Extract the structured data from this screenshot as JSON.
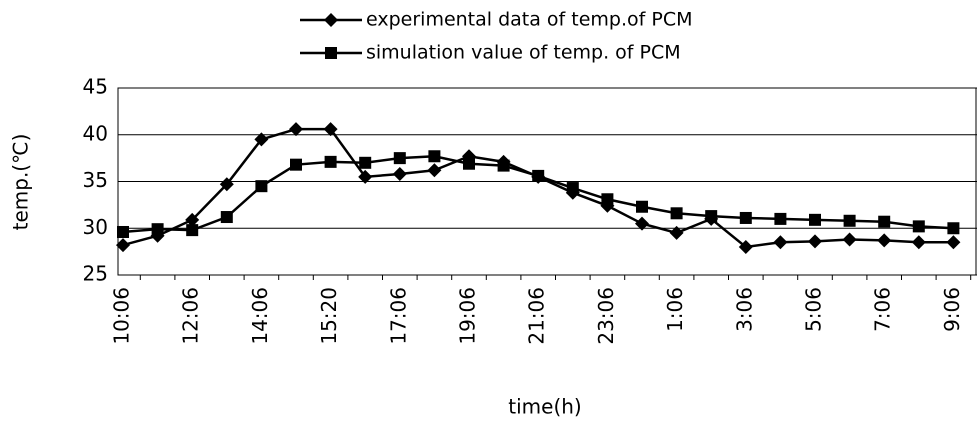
{
  "chart_data": {
    "type": "line",
    "x_label": "time(h)",
    "y_label": "temp.(℃)",
    "categories": [
      "10:06",
      null,
      "12:06",
      null,
      "14:06",
      null,
      "15:20",
      null,
      "17:06",
      null,
      "19:06",
      null,
      "21:06",
      null,
      "23:06",
      null,
      "1:06",
      null,
      "3:06",
      null,
      "5:06",
      null,
      "7:06",
      null,
      "9:06"
    ],
    "series": [
      {
        "name": "experimental data of temp.of PCM",
        "color": "#000000",
        "marker": "diamond",
        "values": [
          28.2,
          29.2,
          30.9,
          34.7,
          39.5,
          40.6,
          40.6,
          35.5,
          35.8,
          36.2,
          37.7,
          37.1,
          35.5,
          33.8,
          32.4,
          30.5,
          29.5,
          31.0,
          28.0,
          28.5,
          28.6,
          28.8,
          28.7,
          28.5,
          28.5
        ]
      },
      {
        "name": "simulation value of temp. of PCM",
        "color": "#000000",
        "marker": "square",
        "values": [
          29.6,
          29.9,
          29.8,
          31.2,
          34.5,
          36.8,
          37.1,
          37.0,
          37.5,
          37.7,
          36.9,
          36.7,
          35.6,
          34.3,
          33.1,
          32.3,
          31.6,
          31.3,
          31.1,
          31.0,
          30.9,
          30.8,
          30.7,
          30.2,
          30.0
        ]
      }
    ],
    "ylim": [
      25,
      45
    ],
    "yticks": [
      25,
      30,
      35,
      40,
      45
    ],
    "grid": true,
    "legend": "top"
  }
}
